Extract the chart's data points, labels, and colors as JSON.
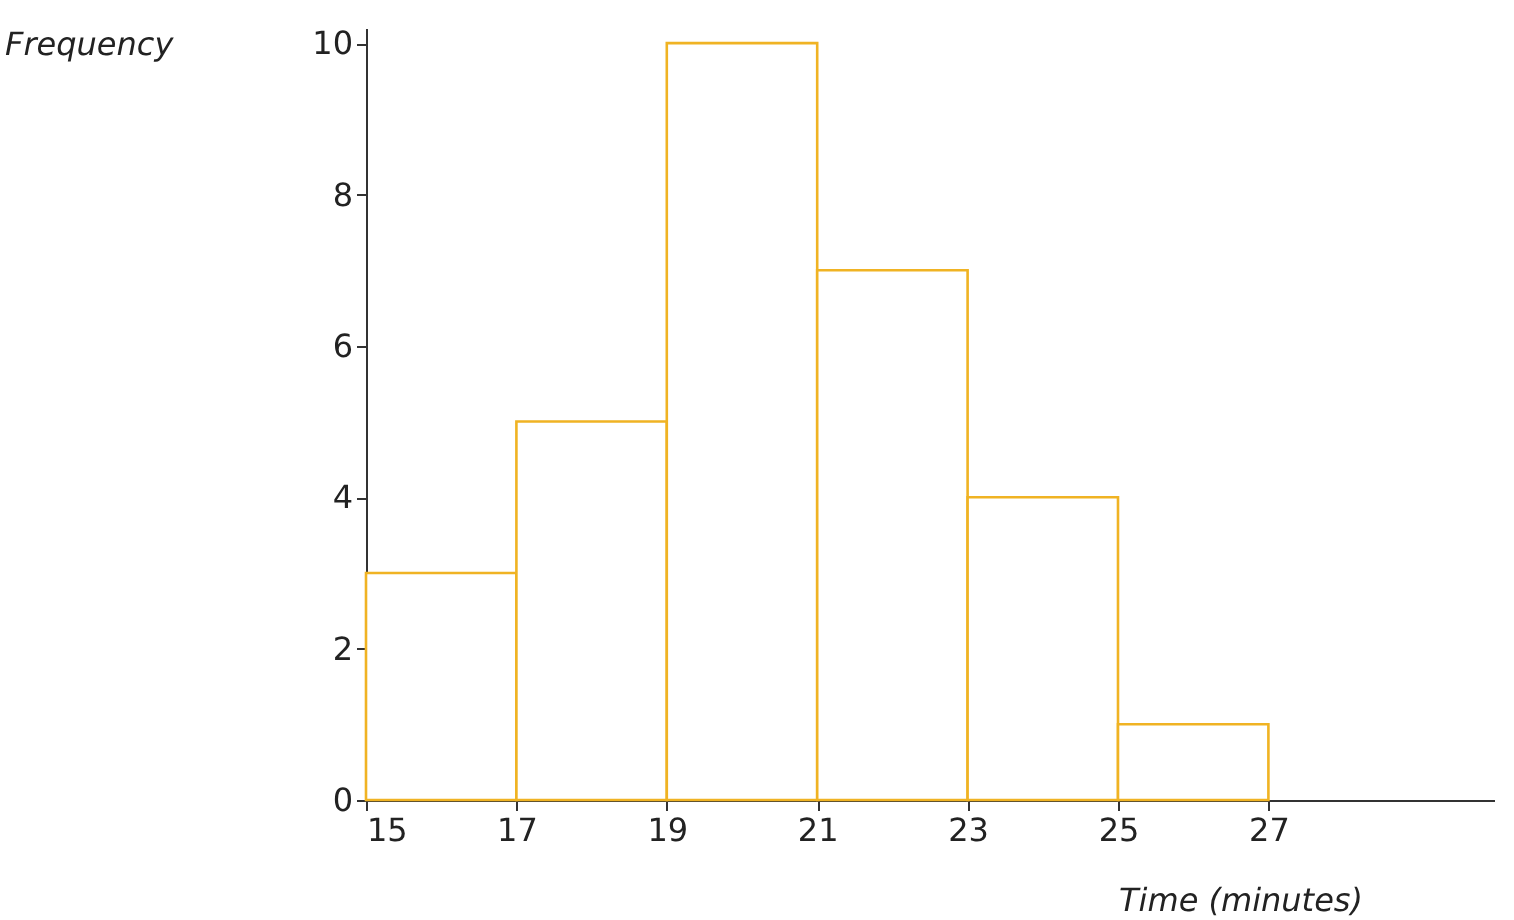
{
  "chart_data": {
    "type": "histogram",
    "xlabel": "Time (minutes)",
    "ylabel": "Frequency",
    "bins": [
      15,
      17,
      19,
      21,
      23,
      25,
      27
    ],
    "values": [
      3,
      5,
      10,
      7,
      4,
      1
    ],
    "color": "#f0b323",
    "xlim": [
      15,
      30
    ],
    "xticks": [
      15,
      17,
      19,
      21,
      23,
      25,
      27
    ],
    "ylim": [
      0,
      10.2
    ],
    "yticks": [
      0,
      2,
      4,
      6,
      8,
      10
    ]
  }
}
